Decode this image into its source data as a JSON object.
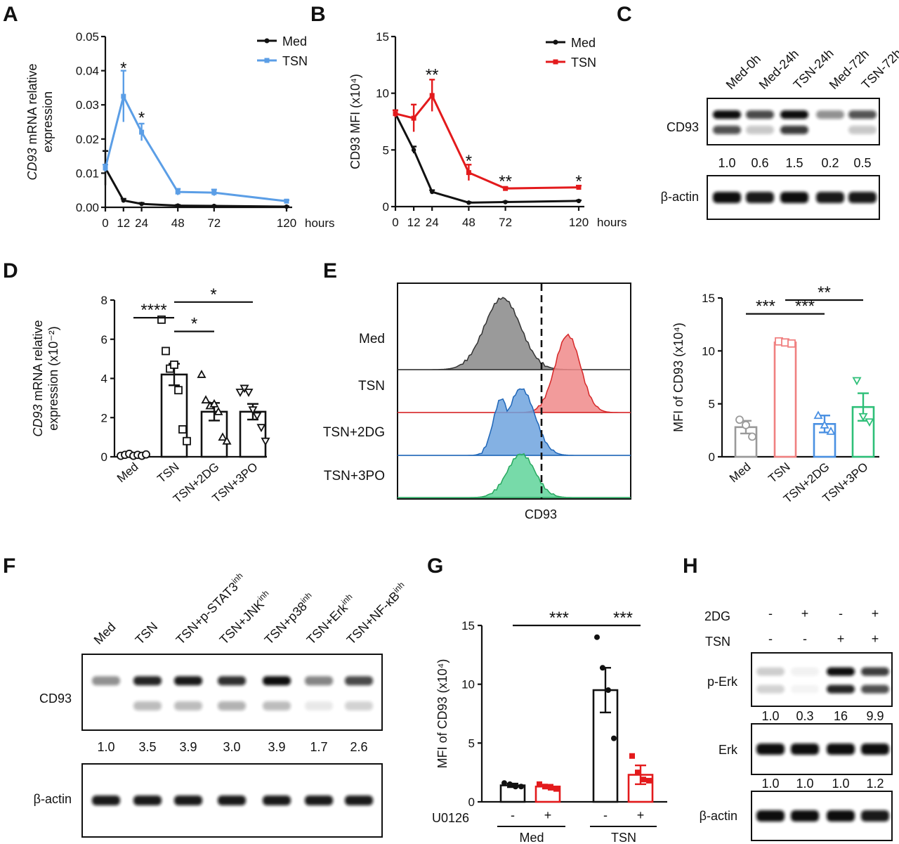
{
  "panels": {
    "A": {
      "letter": "A"
    },
    "B": {
      "letter": "B"
    },
    "C": {
      "letter": "C"
    },
    "D": {
      "letter": "D"
    },
    "E": {
      "letter": "E"
    },
    "F": {
      "letter": "F"
    },
    "G": {
      "letter": "G"
    },
    "H": {
      "letter": "H"
    }
  },
  "chart_data": [
    {
      "id": "A",
      "type": "line",
      "ylabel_italic": "CD93",
      "ylabel_rest": " mRNA relative",
      "ylabel_line2": "expression",
      "xunit": "hours",
      "x": [
        0,
        12,
        24,
        48,
        72,
        120
      ],
      "xticks": [
        "0",
        "12",
        "24",
        "48",
        "72",
        "120"
      ],
      "ylim": [
        0,
        0.05
      ],
      "yticks": [
        "0.00",
        "0.01",
        "0.02",
        "0.03",
        "0.04",
        "0.05"
      ],
      "legend": "top-right",
      "series": [
        {
          "name": "Med",
          "color": "#111111",
          "values": [
            0.0115,
            0.002,
            0.001,
            0.0005,
            0.0004,
            0.0002
          ],
          "errors": [
            0.005,
            0.0005,
            0.0003,
            0.0002,
            0.0001,
            0.0001
          ]
        },
        {
          "name": "TSN",
          "color": "#5b9ee6",
          "values": [
            0.0115,
            0.0325,
            0.022,
            0.0045,
            0.0043,
            0.0018
          ],
          "errors": [
            0.001,
            0.0075,
            0.0025,
            0.0009,
            0.0009,
            0.0003
          ]
        }
      ],
      "annotations": [
        {
          "x": 12,
          "y": 0.042,
          "text": "*"
        },
        {
          "x": 24,
          "y": 0.0275,
          "text": "*"
        }
      ]
    },
    {
      "id": "B",
      "type": "line",
      "ylabel": "CD93 MFI (x10⁴)",
      "xunit": "hours",
      "x": [
        0,
        12,
        24,
        48,
        72,
        120
      ],
      "xticks": [
        "0",
        "12",
        "24",
        "48",
        "72",
        "120"
      ],
      "ylim": [
        0,
        15
      ],
      "yticks": [
        "0",
        "5",
        "10",
        "15"
      ],
      "legend": "top-right",
      "series": [
        {
          "name": "Med",
          "color": "#111111",
          "values": [
            8.2,
            5.0,
            1.3,
            0.35,
            0.4,
            0.5
          ],
          "errors": [
            0.3,
            0.3,
            0.15,
            0.05,
            0.05,
            0.05
          ]
        },
        {
          "name": "TSN",
          "color": "#e31a1c",
          "values": [
            8.2,
            7.8,
            9.8,
            3.0,
            1.6,
            1.7
          ],
          "errors": [
            0.3,
            1.2,
            1.4,
            0.7,
            0.1,
            0.15
          ]
        }
      ],
      "annotations": [
        {
          "x": 24,
          "y": 12.0,
          "text": "**"
        },
        {
          "x": 48,
          "y": 4.4,
          "text": "*"
        },
        {
          "x": 72,
          "y": 2.6,
          "text": "**"
        },
        {
          "x": 120,
          "y": 2.6,
          "text": "*"
        }
      ]
    },
    {
      "id": "D",
      "type": "bar",
      "ylabel_italic": "CD93",
      "ylabel_rest": " mRNA relative",
      "ylabel_line2": "expression (x10⁻²)",
      "categories": [
        "Med",
        "TSN",
        "TSN+2DG",
        "TSN+3PO"
      ],
      "values": [
        0.1,
        4.2,
        2.3,
        2.3
      ],
      "errors": [
        0.05,
        0.55,
        0.45,
        0.4
      ],
      "points": [
        [
          0.05,
          0.1,
          0.15,
          0.05,
          0.1,
          0.05,
          0.12
        ],
        [
          7.0,
          5.4,
          4.5,
          4.7,
          3.4,
          1.4,
          0.8
        ],
        [
          4.2,
          2.9,
          2.6,
          2.7,
          2.3,
          1.0,
          0.8
        ],
        [
          3.3,
          3.5,
          3.3,
          2.4,
          2.1,
          1.5,
          0.8
        ]
      ],
      "markers": [
        "circle",
        "square",
        "triangle",
        "triangle-down"
      ],
      "ylim": [
        0,
        8
      ],
      "yticks": [
        "0",
        "2",
        "4",
        "6",
        "8"
      ],
      "significance": [
        {
          "from": 0,
          "to": 1,
          "y": 7.1,
          "text": "****"
        },
        {
          "from": 1,
          "to": 2,
          "y": 6.4,
          "text": "*"
        },
        {
          "from": 1,
          "to": 3,
          "y": 7.9,
          "text": "*"
        }
      ]
    },
    {
      "id": "E",
      "type": "bar",
      "ylabel": "MFI of CD93 (x10⁴)",
      "categories": [
        "Med",
        "TSN",
        "TSN+2DG",
        "TSN+3PO"
      ],
      "colors": [
        "#9a9a9a",
        "#f08080",
        "#4a90e2",
        "#2ebf78"
      ],
      "values": [
        2.8,
        10.8,
        3.1,
        4.7
      ],
      "errors": [
        0.6,
        0.15,
        0.8,
        1.3
      ],
      "points": [
        [
          3.5,
          3.0,
          1.9
        ],
        [
          10.9,
          10.8,
          10.7
        ],
        [
          3.9,
          3.0,
          2.4
        ],
        [
          7.2,
          3.8,
          3.3
        ]
      ],
      "markers": [
        "circle",
        "square",
        "triangle",
        "triangle-down"
      ],
      "ylim": [
        0,
        15
      ],
      "yticks": [
        "0",
        "5",
        "10",
        "15"
      ],
      "significance": [
        {
          "from": 0,
          "to": 1,
          "y": 13.5,
          "text": "***"
        },
        {
          "from": 1,
          "to": 2,
          "y": 13.5,
          "text": "***"
        },
        {
          "from": 1,
          "to": 3,
          "y": 14.8,
          "text": "**"
        }
      ]
    },
    {
      "id": "G",
      "type": "bar",
      "ylabel": "MFI of CD93 (x10⁴)",
      "factor_label": "U0126",
      "groups": [
        "Med",
        "TSN"
      ],
      "categories": [
        "-",
        "+",
        "-",
        "+"
      ],
      "group_of": [
        0,
        0,
        1,
        1
      ],
      "colors": [
        "#111111",
        "#e31a1c",
        "#111111",
        "#e31a1c"
      ],
      "values": [
        1.4,
        1.3,
        9.5,
        2.3
      ],
      "errors": [
        0.15,
        0.15,
        1.9,
        0.8
      ],
      "points": [
        [
          1.6,
          1.5,
          1.3,
          1.3
        ],
        [
          1.5,
          1.3,
          1.2,
          1.1
        ],
        [
          14.0,
          11.4,
          9.5,
          5.4
        ],
        [
          3.9,
          2.5,
          1.9,
          1.8
        ]
      ],
      "ylim": [
        0,
        15
      ],
      "yticks": [
        "0",
        "5",
        "10",
        "15"
      ],
      "significance": [
        {
          "from": 0,
          "to": 2,
          "y": 15.0,
          "text": "***"
        },
        {
          "from": 2,
          "to": 3,
          "y": 15.0,
          "text": "***"
        }
      ]
    }
  ],
  "histogram": {
    "xlabel": "CD93",
    "tracks": [
      {
        "name": "Med",
        "color": "#333333",
        "fill": "#888888",
        "center": 0.45,
        "width": 0.17
      },
      {
        "name": "TSN",
        "color": "#d62728",
        "fill": "#f08a8a",
        "center": 0.73,
        "width": 0.12
      },
      {
        "name": "TSN+2DG",
        "color": "#1f66b8",
        "fill": "#6fa3de",
        "center": 0.53,
        "width": 0.13
      },
      {
        "name": "TSN+3PO",
        "color": "#27a85f",
        "fill": "#5fd39a",
        "center": 0.53,
        "width": 0.13
      }
    ]
  },
  "blots": {
    "C": {
      "lanes": [
        "Med-0h",
        "Med-24h",
        "TSN-24h",
        "Med-72h",
        "TSN-72h"
      ],
      "rows": [
        {
          "label": "CD93",
          "bands": [
            [
              1.0,
              0.8
            ],
            [
              0.75,
              0.25
            ],
            [
              1.0,
              0.9
            ],
            [
              0.45,
              0.0
            ],
            [
              0.7,
              0.25
            ]
          ],
          "quant": [
            "1.0",
            "0.6",
            "1.5",
            "0.2",
            "0.5"
          ]
        },
        {
          "label": "β-actin",
          "bands": [
            [
              1.0
            ],
            [
              0.95
            ],
            [
              1.0
            ],
            [
              0.95
            ],
            [
              0.95
            ]
          ],
          "quant": []
        }
      ]
    },
    "F": {
      "lanes": [
        "Med",
        "TSN",
        "TSN+p-STAT3",
        "TSN+JNK",
        "TSN+p38",
        "TSN+Erk",
        "TSN+NF-κB"
      ],
      "lane_sup": [
        "",
        "",
        "inh",
        "inh",
        "inh",
        "inh",
        "inh"
      ],
      "rows": [
        {
          "label": "CD93",
          "bands": [
            [
              0.45,
              0.0
            ],
            [
              0.9,
              0.3
            ],
            [
              0.95,
              0.3
            ],
            [
              0.85,
              0.35
            ],
            [
              1.0,
              0.3
            ],
            [
              0.5,
              0.1
            ],
            [
              0.75,
              0.2
            ]
          ],
          "quant": [
            "1.0",
            "3.5",
            "3.9",
            "3.0",
            "3.9",
            "1.7",
            "2.6"
          ]
        },
        {
          "label": "β-actin",
          "bands": [
            [
              0.95
            ],
            [
              0.95
            ],
            [
              0.95
            ],
            [
              0.95
            ],
            [
              0.95
            ],
            [
              0.95
            ],
            [
              0.95
            ]
          ],
          "quant": []
        }
      ]
    },
    "H": {
      "factors": [
        {
          "name": "2DG",
          "states": [
            "-",
            "+",
            "-",
            "+"
          ]
        },
        {
          "name": "TSN",
          "states": [
            "-",
            "-",
            "+",
            "+"
          ]
        }
      ],
      "rows": [
        {
          "label": "p-Erk",
          "bands": [
            [
              0.2,
              0.2
            ],
            [
              0.05,
              0.05
            ],
            [
              1.0,
              1.0
            ],
            [
              0.8,
              0.8
            ]
          ],
          "quant": [
            "1.0",
            "0.3",
            "16",
            "9.9"
          ]
        },
        {
          "label": "Erk",
          "bands": [
            [
              1.0
            ],
            [
              1.0
            ],
            [
              1.0
            ],
            [
              1.0
            ]
          ],
          "quant": [
            "1.0",
            "1.0",
            "1.0",
            "1.2"
          ]
        },
        {
          "label": "β-actin",
          "bands": [
            [
              1.0
            ],
            [
              1.0
            ],
            [
              1.0
            ],
            [
              0.95
            ]
          ],
          "quant": []
        }
      ]
    }
  }
}
